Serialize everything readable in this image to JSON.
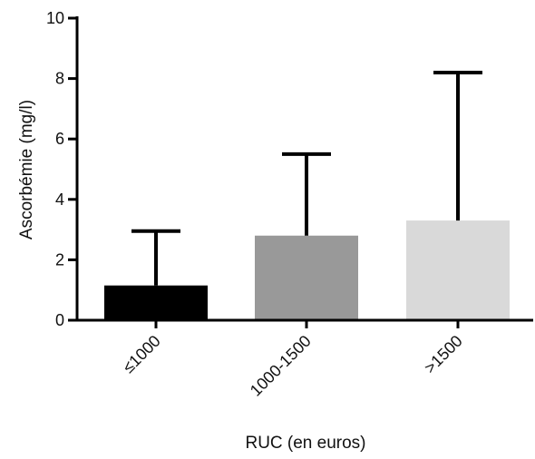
{
  "chart_data": {
    "type": "bar",
    "title": "",
    "xlabel": "RUC (en euros)",
    "ylabel": "Ascorbémie (mg/l)",
    "categories": [
      "≤1000",
      "1000-1500",
      ">1500"
    ],
    "values": [
      1.15,
      2.8,
      3.3
    ],
    "error_upper": [
      2.95,
      5.5,
      8.2
    ],
    "ylim": [
      0,
      10
    ],
    "yticks": [
      0,
      2,
      4,
      6,
      8,
      10
    ],
    "bar_colors": [
      "#000000",
      "#999999",
      "#d9d9d9"
    ],
    "grid": false,
    "legend": "none"
  }
}
